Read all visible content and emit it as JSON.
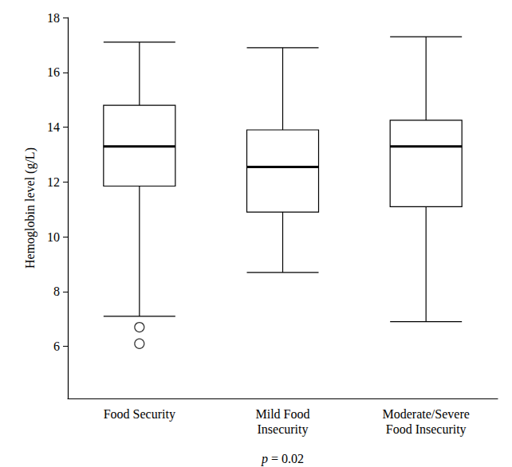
{
  "chart_data": {
    "type": "boxplot",
    "y_label": "Hemoglobin level (g/L)",
    "annotation": "p = 0.02",
    "categories": [
      "Food Security",
      "Mild Food\nInsecurity",
      "Moderate/Severe\nFood Insecurity"
    ],
    "values": [
      [
        7.1,
        11.85,
        13.3,
        14.8,
        17.1
      ],
      [
        8.7,
        10.9,
        12.55,
        13.9,
        16.9
      ],
      [
        6.9,
        11.1,
        13.3,
        14.25,
        17.3
      ]
    ],
    "outliers": [
      [
        6.7,
        6.1
      ],
      [],
      []
    ],
    "color": "#000000",
    "ylim": [
      4.1,
      18
    ],
    "yticks": [
      6,
      8,
      10,
      12,
      14,
      16,
      18
    ],
    "grid": false
  }
}
